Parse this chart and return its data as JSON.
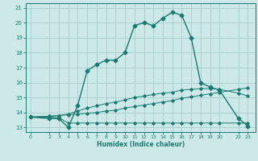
{
  "background_color": "#cce8e8",
  "grid_color": "#aacccc",
  "line_color": "#1a7a6e",
  "xlabel": "Humidex (Indice chaleur)",
  "ylim": [
    12.7,
    21.3
  ],
  "xlim": [
    -0.5,
    23.8
  ],
  "yticks": [
    13,
    14,
    15,
    16,
    17,
    18,
    19,
    20,
    21
  ],
  "xticks": [
    0,
    2,
    3,
    4,
    5,
    6,
    7,
    8,
    9,
    10,
    11,
    12,
    13,
    14,
    15,
    16,
    17,
    18,
    19,
    20,
    22,
    23
  ],
  "line1_x": [
    0,
    2,
    3,
    4,
    5,
    6,
    7,
    8,
    9,
    10,
    11,
    12,
    13,
    14,
    15,
    16,
    17,
    18,
    19,
    20,
    22,
    23
  ],
  "line1_y": [
    13.7,
    13.6,
    13.6,
    13.0,
    14.5,
    16.8,
    17.2,
    17.5,
    17.5,
    18.0,
    19.8,
    20.0,
    19.8,
    20.3,
    20.7,
    20.5,
    19.0,
    16.0,
    15.7,
    15.5,
    13.6,
    13.1
  ],
  "line2_x": [
    0,
    2,
    3,
    4,
    5,
    6,
    7,
    8,
    9,
    10,
    11,
    12,
    13,
    14,
    15,
    16,
    17,
    18,
    19,
    20,
    22,
    23
  ],
  "line2_y": [
    13.7,
    13.75,
    13.8,
    13.85,
    13.9,
    13.95,
    14.0,
    14.1,
    14.15,
    14.3,
    14.4,
    14.5,
    14.6,
    14.7,
    14.8,
    14.95,
    15.05,
    15.15,
    15.25,
    15.35,
    15.55,
    15.65
  ],
  "line3_x": [
    0,
    2,
    3,
    4,
    5,
    6,
    7,
    8,
    9,
    10,
    11,
    12,
    13,
    14,
    15,
    16,
    17,
    18,
    19,
    20,
    22,
    23
  ],
  "line3_y": [
    13.7,
    13.7,
    13.65,
    13.3,
    13.3,
    13.3,
    13.3,
    13.3,
    13.3,
    13.3,
    13.3,
    13.3,
    13.3,
    13.3,
    13.3,
    13.3,
    13.3,
    13.3,
    13.3,
    13.3,
    13.3,
    13.3
  ],
  "line4_x": [
    0,
    2,
    3,
    4,
    5,
    6,
    7,
    8,
    9,
    10,
    11,
    12,
    13,
    14,
    15,
    16,
    17,
    18,
    19,
    20,
    22,
    23
  ],
  "line4_y": [
    13.7,
    13.75,
    13.8,
    13.9,
    14.1,
    14.3,
    14.45,
    14.6,
    14.7,
    14.85,
    15.0,
    15.1,
    15.2,
    15.3,
    15.35,
    15.5,
    15.55,
    15.6,
    15.6,
    15.55,
    15.3,
    15.1
  ]
}
